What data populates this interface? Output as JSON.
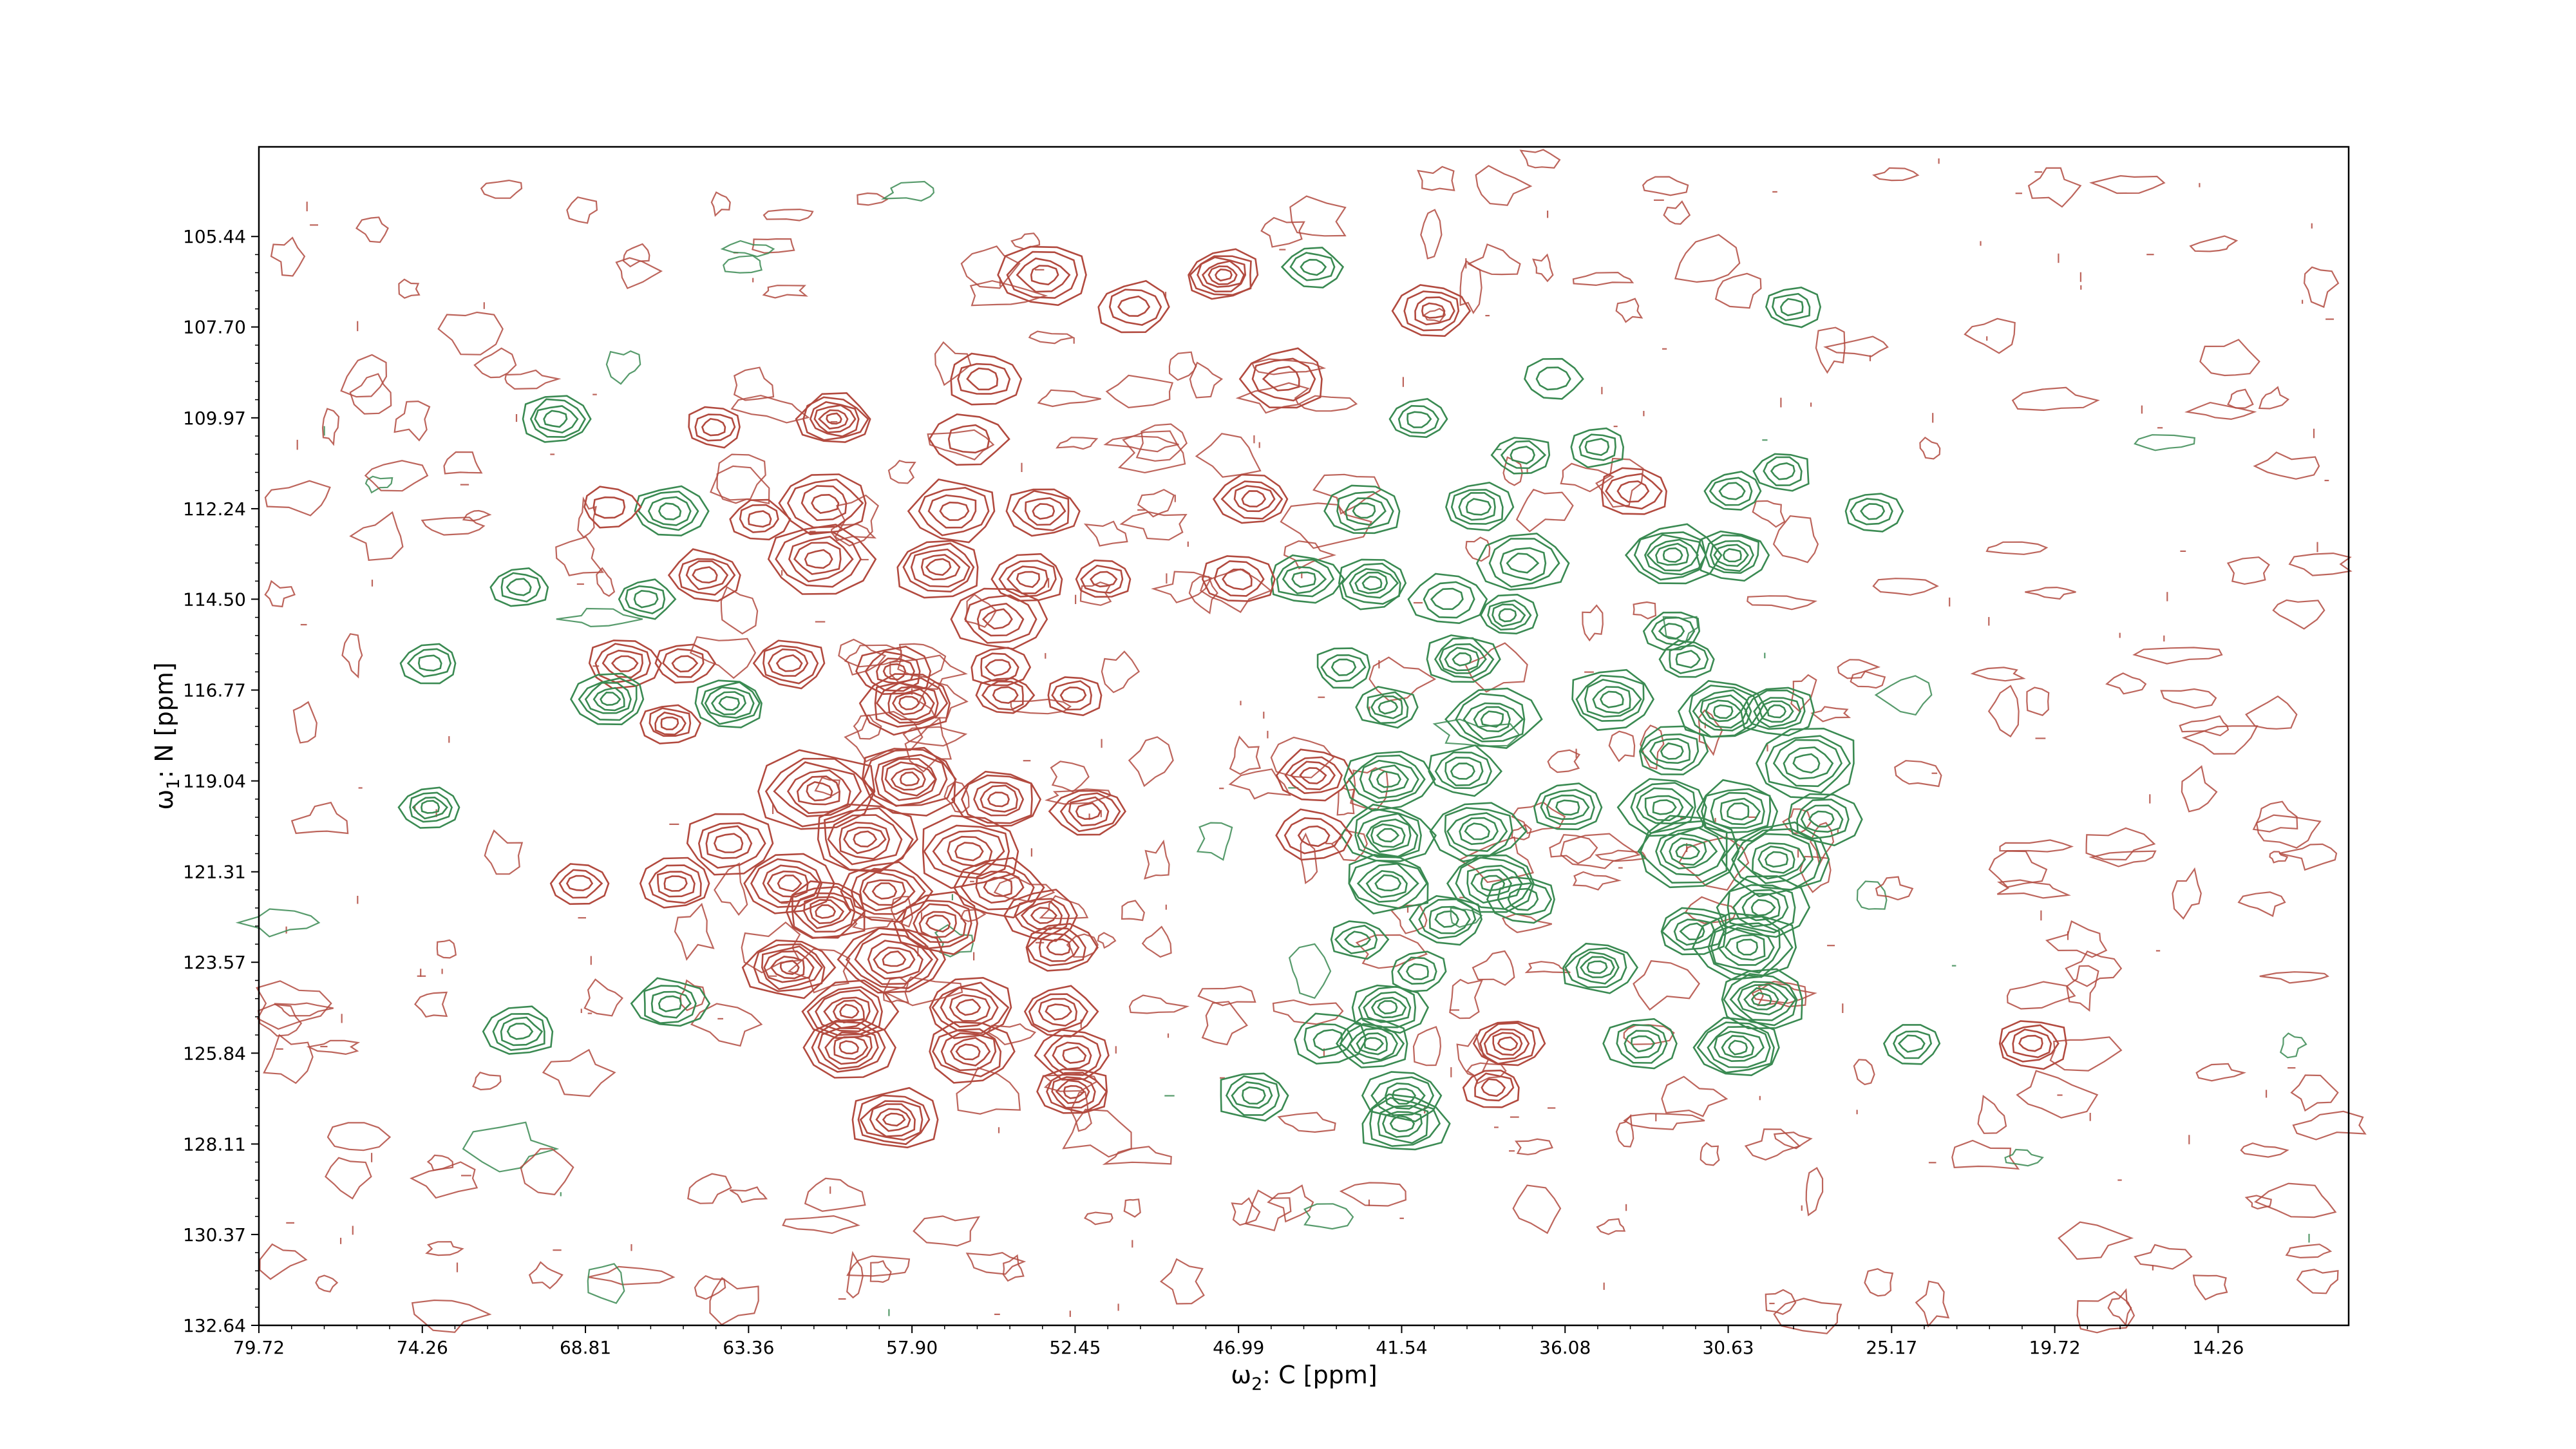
{
  "chart_data": {
    "type": "contour",
    "xlabel": {
      "var": "ω",
      "sub": "2",
      "rest": ": C [ppm]"
    },
    "ylabel": {
      "var": "ω",
      "sub": "1",
      "rest": ": N [ppm]"
    },
    "x_axis": {
      "reversed": true,
      "lim": [
        79.72,
        9.9
      ]
    },
    "y_axis": {
      "reversed": true,
      "lim": [
        103.2,
        132.64
      ]
    },
    "x_ticks": [
      "79.72",
      "74.26",
      "68.81",
      "63.36",
      "57.90",
      "52.45",
      "46.99",
      "41.54",
      "36.08",
      "30.63",
      "25.17",
      "19.72",
      "14.26"
    ],
    "y_ticks": [
      "105.44",
      "107.70",
      "109.97",
      "112.24",
      "114.50",
      "116.77",
      "119.04",
      "121.31",
      "123.57",
      "125.84",
      "128.11",
      "130.37",
      "132.64"
    ],
    "grid": false,
    "series": [
      {
        "color": "#b24a3f"
      },
      {
        "color": "#3a8a52"
      }
    ],
    "peaks": [
      [
        53.5,
        106.4,
        0,
        4,
        5
      ],
      [
        47.5,
        106.4,
        0,
        6,
        4
      ],
      [
        50.5,
        107.2,
        0,
        3,
        4
      ],
      [
        40.5,
        107.3,
        0,
        4,
        4
      ],
      [
        44.5,
        106.2,
        1,
        3,
        3
      ],
      [
        28.5,
        107.2,
        1,
        3,
        3
      ],
      [
        55.5,
        109.0,
        0,
        3,
        4
      ],
      [
        60.5,
        110.0,
        0,
        6,
        4
      ],
      [
        69.8,
        110.0,
        1,
        4,
        4
      ],
      [
        45.5,
        109.0,
        0,
        3,
        5
      ],
      [
        37.5,
        110.9,
        1,
        3,
        3
      ],
      [
        35.0,
        110.7,
        1,
        3,
        3
      ],
      [
        36.5,
        109.0,
        1,
        2,
        3
      ],
      [
        41.0,
        110.0,
        1,
        3,
        3
      ],
      [
        64.5,
        110.2,
        0,
        3,
        3
      ],
      [
        56.0,
        110.5,
        0,
        2,
        4
      ],
      [
        66.0,
        112.3,
        1,
        4,
        4
      ],
      [
        60.8,
        112.1,
        0,
        4,
        5
      ],
      [
        56.5,
        112.3,
        0,
        4,
        5
      ],
      [
        53.5,
        112.3,
        0,
        4,
        4
      ],
      [
        46.5,
        112.0,
        0,
        4,
        4
      ],
      [
        42.8,
        112.3,
        1,
        4,
        4
      ],
      [
        39.0,
        112.2,
        1,
        4,
        4
      ],
      [
        33.8,
        111.8,
        0,
        3,
        4
      ],
      [
        30.5,
        111.8,
        1,
        3,
        3
      ],
      [
        25.8,
        112.3,
        1,
        3,
        3
      ],
      [
        28.8,
        111.3,
        1,
        3,
        3
      ],
      [
        63.0,
        112.5,
        0,
        3,
        3
      ],
      [
        68.0,
        112.2,
        0,
        2,
        3
      ],
      [
        32.5,
        113.4,
        1,
        6,
        5
      ],
      [
        30.5,
        113.4,
        1,
        5,
        4
      ],
      [
        37.5,
        113.6,
        1,
        4,
        5
      ],
      [
        42.5,
        114.1,
        1,
        5,
        4
      ],
      [
        44.8,
        114.0,
        1,
        4,
        4
      ],
      [
        38.0,
        114.9,
        1,
        4,
        3
      ],
      [
        40.0,
        114.5,
        1,
        3,
        4
      ],
      [
        64.8,
        113.9,
        0,
        4,
        4
      ],
      [
        71.0,
        114.2,
        1,
        3,
        3
      ],
      [
        66.8,
        114.5,
        1,
        3,
        3
      ],
      [
        47.0,
        114.0,
        0,
        3,
        4
      ],
      [
        61.0,
        113.5,
        0,
        5,
        6
      ],
      [
        57.0,
        113.7,
        0,
        5,
        5
      ],
      [
        54.0,
        114.0,
        0,
        4,
        4
      ],
      [
        51.5,
        114.0,
        0,
        3,
        3
      ],
      [
        55.0,
        115.0,
        0,
        4,
        5
      ],
      [
        32.5,
        115.3,
        1,
        3,
        3
      ],
      [
        67.5,
        116.1,
        0,
        4,
        4
      ],
      [
        65.5,
        116.1,
        0,
        3,
        3
      ],
      [
        62.0,
        116.1,
        0,
        4,
        4
      ],
      [
        58.5,
        116.3,
        0,
        4,
        4
      ],
      [
        55.0,
        116.2,
        0,
        3,
        3
      ],
      [
        74.0,
        116.1,
        1,
        3,
        3
      ],
      [
        43.5,
        116.2,
        1,
        3,
        3
      ],
      [
        39.5,
        116.0,
        1,
        5,
        4
      ],
      [
        32.0,
        116.0,
        1,
        3,
        3
      ],
      [
        68.0,
        117.0,
        1,
        5,
        4
      ],
      [
        64.0,
        117.1,
        1,
        5,
        4
      ],
      [
        66.0,
        117.6,
        0,
        4,
        3
      ],
      [
        58.0,
        117.1,
        0,
        6,
        5
      ],
      [
        54.8,
        116.9,
        0,
        3,
        3
      ],
      [
        52.5,
        116.9,
        0,
        3,
        3
      ],
      [
        34.5,
        117.0,
        1,
        5,
        5
      ],
      [
        30.8,
        117.3,
        1,
        6,
        5
      ],
      [
        29.0,
        117.3,
        1,
        5,
        4
      ],
      [
        38.5,
        117.5,
        1,
        5,
        5
      ],
      [
        42.0,
        117.2,
        1,
        4,
        3
      ],
      [
        32.5,
        118.3,
        1,
        4,
        4
      ],
      [
        28.0,
        118.6,
        1,
        5,
        6
      ],
      [
        44.5,
        118.9,
        0,
        4,
        4
      ],
      [
        42.0,
        119.0,
        1,
        5,
        5
      ],
      [
        39.5,
        118.8,
        1,
        4,
        4
      ],
      [
        61.0,
        119.3,
        0,
        6,
        7
      ],
      [
        58.0,
        119.0,
        0,
        7,
        6
      ],
      [
        55.0,
        119.5,
        0,
        5,
        5
      ],
      [
        52.0,
        119.8,
        0,
        4,
        4
      ],
      [
        74.0,
        119.7,
        1,
        4,
        3
      ],
      [
        36.0,
        119.7,
        1,
        4,
        4
      ],
      [
        32.8,
        119.7,
        1,
        5,
        5
      ],
      [
        30.3,
        119.8,
        1,
        5,
        5
      ],
      [
        27.5,
        120.0,
        1,
        4,
        4
      ],
      [
        64.0,
        120.6,
        0,
        4,
        5
      ],
      [
        59.5,
        120.5,
        0,
        6,
        6
      ],
      [
        56.0,
        120.8,
        0,
        5,
        6
      ],
      [
        42.0,
        120.4,
        1,
        6,
        5
      ],
      [
        39.0,
        120.3,
        1,
        5,
        5
      ],
      [
        44.5,
        120.4,
        0,
        3,
        4
      ],
      [
        32.0,
        120.8,
        1,
        6,
        6
      ],
      [
        29.0,
        121.0,
        1,
        6,
        6
      ],
      [
        65.8,
        121.6,
        0,
        4,
        4
      ],
      [
        62.0,
        121.6,
        0,
        5,
        5
      ],
      [
        58.8,
        121.8,
        0,
        5,
        5
      ],
      [
        55.0,
        121.7,
        0,
        4,
        5
      ],
      [
        69.0,
        121.6,
        0,
        3,
        3
      ],
      [
        42.0,
        121.6,
        1,
        5,
        5
      ],
      [
        38.5,
        121.6,
        1,
        5,
        5
      ],
      [
        60.8,
        122.3,
        0,
        6,
        5
      ],
      [
        57.0,
        122.6,
        0,
        5,
        5
      ],
      [
        53.5,
        122.4,
        0,
        4,
        4
      ],
      [
        40.0,
        122.5,
        1,
        4,
        4
      ],
      [
        37.5,
        122.0,
        1,
        3,
        4
      ],
      [
        29.5,
        122.2,
        1,
        5,
        5
      ],
      [
        31.8,
        122.8,
        1,
        4,
        4
      ],
      [
        43.0,
        123.0,
        1,
        3,
        3
      ],
      [
        62.0,
        123.7,
        0,
        6,
        5
      ],
      [
        58.5,
        123.5,
        0,
        6,
        6
      ],
      [
        53.0,
        123.2,
        0,
        4,
        4
      ],
      [
        35.0,
        123.7,
        1,
        5,
        4
      ],
      [
        30.0,
        123.2,
        1,
        6,
        6
      ],
      [
        41.0,
        123.8,
        1,
        3,
        3
      ],
      [
        66.0,
        124.6,
        1,
        4,
        4
      ],
      [
        60.0,
        124.8,
        0,
        6,
        5
      ],
      [
        56.0,
        124.7,
        0,
        5,
        5
      ],
      [
        53.0,
        124.8,
        0,
        4,
        4
      ],
      [
        71.0,
        125.3,
        1,
        4,
        4
      ],
      [
        42.0,
        124.7,
        1,
        5,
        4
      ],
      [
        29.5,
        124.5,
        1,
        6,
        5
      ],
      [
        60.0,
        125.7,
        0,
        6,
        5
      ],
      [
        56.0,
        125.8,
        0,
        5,
        5
      ],
      [
        52.5,
        125.9,
        0,
        4,
        4
      ],
      [
        42.5,
        125.6,
        1,
        5,
        4
      ],
      [
        38.0,
        125.6,
        0,
        5,
        4
      ],
      [
        33.5,
        125.6,
        1,
        4,
        4
      ],
      [
        30.3,
        125.7,
        1,
        6,
        5
      ],
      [
        24.5,
        125.6,
        1,
        3,
        3
      ],
      [
        20.5,
        125.6,
        0,
        4,
        4
      ],
      [
        52.5,
        126.8,
        0,
        5,
        4
      ],
      [
        58.5,
        127.5,
        0,
        6,
        5
      ],
      [
        46.5,
        126.9,
        1,
        4,
        4
      ],
      [
        41.5,
        126.9,
        1,
        4,
        4
      ],
      [
        38.5,
        126.7,
        0,
        3,
        3
      ],
      [
        41.5,
        127.6,
        1,
        5,
        5
      ],
      [
        44.0,
        125.5,
        1,
        3,
        4
      ]
    ]
  }
}
